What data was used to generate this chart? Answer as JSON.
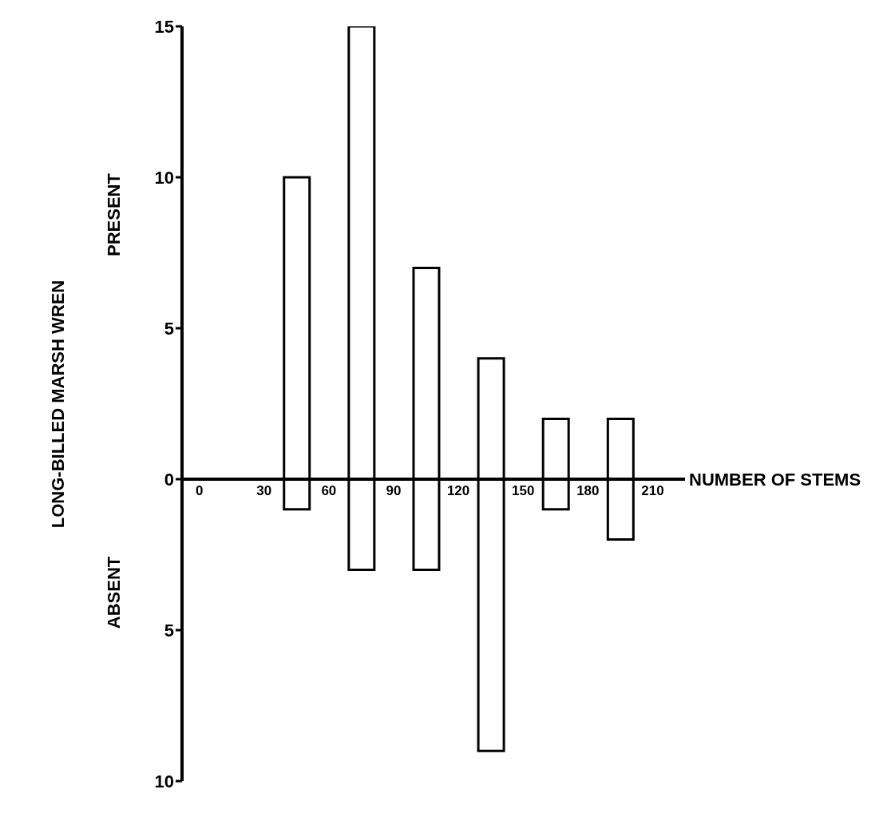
{
  "chart_data": {
    "type": "bar",
    "stacked": true,
    "xlabel": "NUMBER OF STEMS",
    "ylabel": "LONG-BILLED MARSH WREN",
    "annotations": [
      "PRESENT",
      "ABSENT"
    ],
    "x": [
      45,
      75,
      105,
      135,
      165,
      195
    ],
    "series": [
      {
        "color": "#ffffff",
        "values": [
          10,
          15,
          7,
          4,
          2,
          2
        ]
      },
      {
        "color": "#ffffff",
        "values": [
          -1,
          -3,
          -3,
          -9,
          -1,
          -2
        ]
      }
    ],
    "xlim": [
      -8,
      225
    ],
    "xticks": [
      0,
      30,
      60,
      90,
      120,
      150,
      180,
      210
    ],
    "ylim": [
      -10,
      15
    ],
    "yticks": [
      {
        "value": -10,
        "label": "10"
      },
      {
        "value": -5,
        "label": "5"
      },
      0,
      5,
      10,
      15
    ]
  }
}
